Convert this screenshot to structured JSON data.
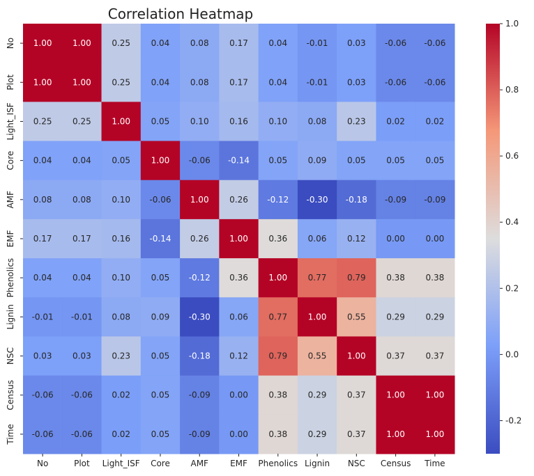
{
  "chart_data": {
    "type": "heatmap",
    "title": "Correlation Heatmap",
    "xlabel": "",
    "ylabel": "",
    "x_categories": [
      "No",
      "Plot",
      "Light_ISF",
      "Core",
      "AMF",
      "EMF",
      "Phenolics",
      "Lignin",
      "NSC",
      "Census",
      "Time"
    ],
    "y_categories": [
      "No",
      "Plot",
      "Light_ISF",
      "Core",
      "AMF",
      "EMF",
      "Phenolics",
      "Lignin",
      "NSC",
      "Census",
      "Time"
    ],
    "values": [
      [
        1.0,
        1.0,
        0.25,
        0.04,
        0.08,
        0.17,
        0.04,
        -0.01,
        0.03,
        -0.06,
        -0.06
      ],
      [
        1.0,
        1.0,
        0.25,
        0.04,
        0.08,
        0.17,
        0.04,
        -0.01,
        0.03,
        -0.06,
        -0.06
      ],
      [
        0.25,
        0.25,
        1.0,
        0.05,
        0.1,
        0.16,
        0.1,
        0.08,
        0.23,
        0.02,
        0.02
      ],
      [
        0.04,
        0.04,
        0.05,
        1.0,
        -0.06,
        -0.14,
        0.05,
        0.09,
        0.05,
        0.05,
        0.05
      ],
      [
        0.08,
        0.08,
        0.1,
        -0.06,
        1.0,
        0.26,
        -0.12,
        -0.3,
        -0.18,
        -0.09,
        -0.09
      ],
      [
        0.17,
        0.17,
        0.16,
        -0.14,
        0.26,
        1.0,
        0.36,
        0.06,
        0.12,
        0.0,
        0.0
      ],
      [
        0.04,
        0.04,
        0.1,
        0.05,
        -0.12,
        0.36,
        1.0,
        0.77,
        0.79,
        0.38,
        0.38
      ],
      [
        -0.01,
        -0.01,
        0.08,
        0.09,
        -0.3,
        0.06,
        0.77,
        1.0,
        0.55,
        0.29,
        0.29
      ],
      [
        0.03,
        0.03,
        0.23,
        0.05,
        -0.18,
        0.12,
        0.79,
        0.55,
        1.0,
        0.37,
        0.37
      ],
      [
        -0.06,
        -0.06,
        0.02,
        0.05,
        -0.09,
        0.0,
        0.38,
        0.29,
        0.37,
        1.0,
        1.0
      ],
      [
        -0.06,
        -0.06,
        0.02,
        0.05,
        -0.09,
        0.0,
        0.38,
        0.29,
        0.37,
        1.0,
        1.0
      ]
    ],
    "value_format": "2 decimals",
    "colormap": "coolwarm",
    "color_range": [
      -0.3,
      1.0
    ],
    "colorbar_ticks": [
      "1.0",
      "0.8",
      "0.6",
      "0.4",
      "0.2",
      "0.0",
      "-0.2"
    ],
    "colorbar_tick_values": [
      1.0,
      0.8,
      0.6,
      0.4,
      0.2,
      0.0,
      -0.2
    ],
    "colorbar_placement": "right",
    "grid": false,
    "legend": "colorbar-right"
  }
}
